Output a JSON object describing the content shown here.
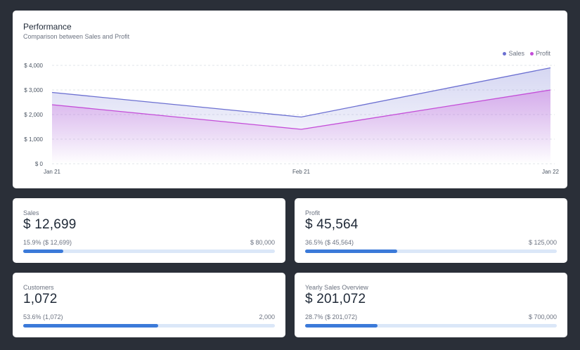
{
  "performance": {
    "title": "Performance",
    "subtitle": "Comparison between Sales and Profit"
  },
  "chart_data": {
    "type": "area",
    "categories": [
      "Jan 21",
      "Feb 21",
      "Jan 22"
    ],
    "series": [
      {
        "name": "Sales",
        "values": [
          2900,
          1900,
          3900
        ],
        "color": "#6b6fd1"
      },
      {
        "name": "Profit",
        "values": [
          2400,
          1400,
          3000
        ],
        "color": "#c44dd8"
      }
    ],
    "y_ticks": [
      "$ 4,000",
      "$ 3,000",
      "$ 2,000",
      "$ 1,000",
      "$ 0"
    ],
    "ylim": [
      0,
      4000
    ],
    "grid": true,
    "legend_position": "top-right"
  },
  "kpis": {
    "sales": {
      "label": "Sales",
      "value": "$ 12,699",
      "pct_text": "15.9% ($ 12,699)",
      "target": "$ 80,000",
      "progress": 15.9
    },
    "profit": {
      "label": "Profit",
      "value": "$ 45,564",
      "pct_text": "36.5% ($ 45,564)",
      "target": "$ 125,000",
      "progress": 36.5
    },
    "customers": {
      "label": "Customers",
      "value": "1,072",
      "pct_text": "53.6% (1,072)",
      "target": "2,000",
      "progress": 53.6
    },
    "yearly": {
      "label": "Yearly Sales Overview",
      "value": "$ 201,072",
      "pct_text": "28.7% ($ 201,072)",
      "target": "$ 700,000",
      "progress": 28.7
    }
  },
  "colors": {
    "background": "#2a2f38",
    "card": "#ffffff",
    "progress_fill": "#3b7ad9",
    "progress_track": "#dbe7f8"
  }
}
